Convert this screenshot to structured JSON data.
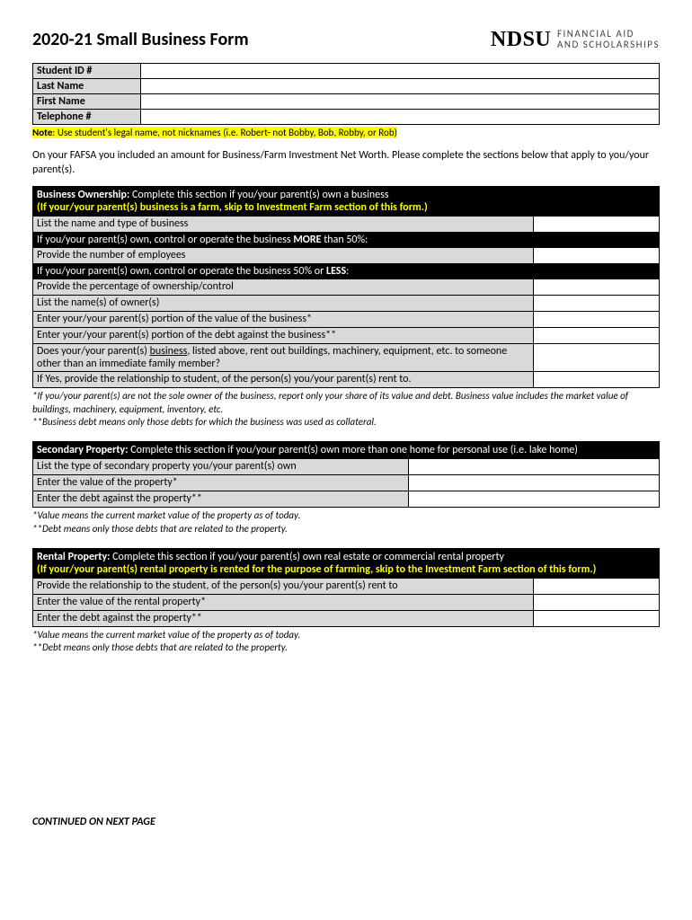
{
  "header": {
    "title": "2020-21 Small Business Form",
    "logo_main": "NDSU",
    "logo_line1": "FINANCIAL AID",
    "logo_line2": "AND SCHOLARSHIPS"
  },
  "info": {
    "student_id_label": "Student ID #",
    "last_name_label": "Last Name",
    "first_name_label": "First Name",
    "telephone_label": "Telephone #"
  },
  "note": {
    "label": "Note",
    "text": ": Use student's legal name, not nicknames (i.e. Robert- not Bobby, Bob, Robby, or Rob)"
  },
  "intro": "On your FAFSA you included an amount for Business/Farm Investment Net Worth.  Please complete the sections below that apply to you/your parent(s).",
  "business": {
    "title": "Business Ownership:",
    "subtitle": " Complete this section if you/your parent(s) own a business",
    "yellow": "(If your/your parent(s) business is a farm, skip to Investment Farm section of this form.)",
    "r1": "List the name and type of business",
    "black1a": "If you/your parent(s) own, control or operate the business ",
    "black1b": "MORE",
    "black1c": " than 50%:",
    "r2": "Provide the number of employees",
    "black2a": "If you/your parent(s) own, control or operate the business 50% or ",
    "black2b": "LESS",
    "black2c": ":",
    "r3": "Provide the percentage of ownership/control",
    "r4": "List the name(s) of owner(s)",
    "r5": "Enter your/your parent(s) portion of the value of the business*",
    "r6": "Enter your/your parent(s) portion of the debt against the business**",
    "r7a": "Does your/your parent(s) ",
    "r7b": "business",
    "r7c": ", listed above, rent out buildings, machinery, equipment, etc. to someone other than an immediate family member?",
    "r8": "If Yes, provide the relationship to student, of the person(s) you/your parent(s) rent to.",
    "foot1": "*If you/your parent(s) are not the sole owner of the business, report only your share of its value and debt.  Business value includes the market value of buildings, machinery, equipment, inventory, etc.",
    "foot2": "**Business debt means only those debts for which the business was used as collateral."
  },
  "secondary": {
    "title": "Secondary Property:",
    "subtitle": " Complete this section if you/your parent(s) own more than one home for personal use (i.e. lake home)",
    "r1": "List the type of secondary property you/your parent(s) own",
    "r2": "Enter the value of the property*",
    "r3": "Enter the debt against the property**",
    "foot1": "*Value means the current market value of the property as of today.",
    "foot2": "**Debt means only those debts that are related to the property."
  },
  "rental": {
    "title": "Rental Property:",
    "subtitle": " Complete this section if you/your parent(s) own real estate or commercial rental property",
    "yellow": "(If your/your parent(s) rental property is rented for the purpose of farming, skip to the Investment Farm section of this form.)",
    "r1": "Provide the relationship to the student, of the person(s) you/your parent(s) rent to",
    "r2": "Enter the value of the rental property*",
    "r3": "Enter the debt against the property**",
    "foot1": "*Value means the current market value of the property as of today.",
    "foot2": "**Debt means only those debts that are related to the property."
  },
  "footer": "CONTINUED ON NEXT PAGE"
}
